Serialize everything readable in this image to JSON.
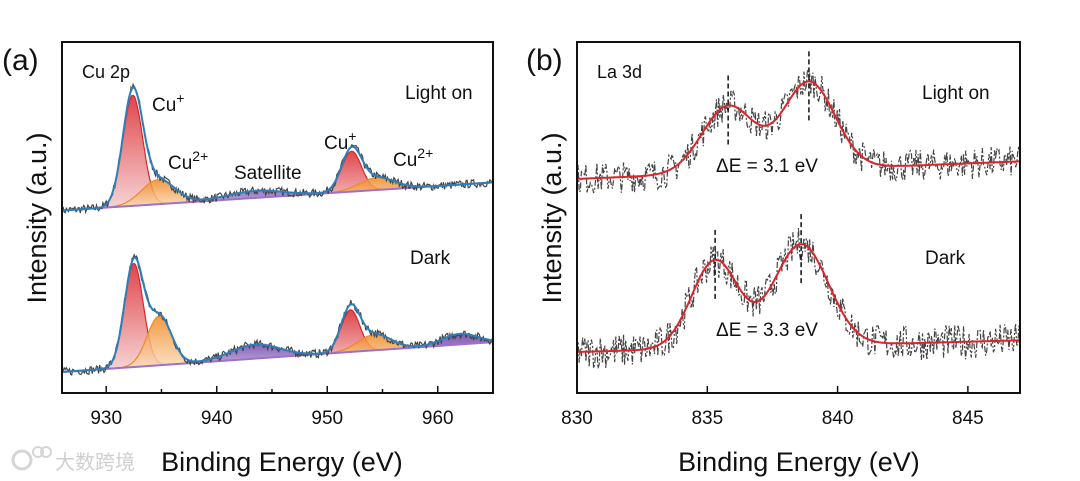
{
  "watermark": "大数跨境",
  "chart_data": [
    {
      "type": "line",
      "panel_label": "(a)",
      "title": "Cu 2p",
      "xlabel": "Binding Energy (eV)",
      "ylabel": "Intensity (a.u.)",
      "xlim": [
        926,
        965
      ],
      "ylim": [
        0,
        10
      ],
      "xticks": [
        930,
        940,
        950,
        960
      ],
      "minor_xticks": [
        935,
        945,
        955
      ],
      "series": [
        {
          "name": "Light on",
          "baseline": [
            5.2,
            6.0
          ],
          "noise": 0.12,
          "peaks": [
            {
              "label": "Cu+",
              "center": 932.4,
              "amp": 3.15,
              "sigma": 0.9,
              "color": "#d9252b"
            },
            {
              "label": "Cu2+",
              "center": 934.7,
              "amp": 0.7,
              "sigma": 1.5,
              "color": "#f08a24"
            },
            {
              "label": "Satellite",
              "center": 943.5,
              "amp": 0.2,
              "sigma": 2.5,
              "color": "#7a4aa8"
            },
            {
              "label": "Cu+",
              "center": 952.2,
              "amp": 1.15,
              "sigma": 0.9,
              "color": "#d9252b"
            },
            {
              "label": "Cu2+",
              "center": 954.5,
              "amp": 0.35,
              "sigma": 1.6,
              "color": "#f08a24"
            }
          ]
        },
        {
          "name": "Dark",
          "baseline": [
            0.6,
            1.45
          ],
          "noise": 0.12,
          "peaks": [
            {
              "label": "Cu+",
              "center": 932.5,
              "amp": 2.95,
              "sigma": 0.85,
              "color": "#d9252b"
            },
            {
              "label": "Cu2+",
              "center": 934.8,
              "amp": 1.4,
              "sigma": 1.1,
              "color": "#f08a24"
            },
            {
              "label": "Satellite",
              "center": 943.5,
              "amp": 0.4,
              "sigma": 2.2,
              "color": "#5b3aa0"
            },
            {
              "label": "Cu+",
              "center": 952.1,
              "amp": 1.2,
              "sigma": 0.85,
              "color": "#d9252b"
            },
            {
              "label": "Cu2+",
              "center": 954.3,
              "amp": 0.45,
              "sigma": 1.5,
              "color": "#f08a24"
            },
            {
              "label": "Satellite",
              "center": 962.0,
              "amp": 0.3,
              "sigma": 1.6,
              "color": "#5b3aa0"
            }
          ]
        }
      ],
      "annotations": {
        "light": "Light on",
        "dark": "Dark",
        "cu_plus": {
          "base": "Cu",
          "sup": "+"
        },
        "cu_2plus": {
          "base": "Cu",
          "sup": "2+"
        },
        "satellite": "Satellite"
      }
    },
    {
      "type": "line",
      "panel_label": "(b)",
      "title": "La 3d",
      "xlabel": "Binding Energy (eV)",
      "ylabel": "Intensity (a.u.)",
      "xlim": [
        830,
        847
      ],
      "ylim": [
        0,
        10
      ],
      "xticks": [
        830,
        835,
        840,
        845
      ],
      "series": [
        {
          "name": "Light on",
          "baseline": [
            6.1,
            6.6
          ],
          "noise": 0.45,
          "peaks": [
            {
              "center": 835.8,
              "amp": 1.9,
              "sigma": 1.0
            },
            {
              "center": 838.9,
              "amp": 2.5,
              "sigma": 1.0
            }
          ],
          "marker_lines": [
            835.8,
            838.9
          ],
          "delta_label": "ΔE = 3.1 eV"
        },
        {
          "name": "Dark",
          "baseline": [
            1.17,
            1.5
          ],
          "noise": 0.5,
          "peaks": [
            {
              "center": 835.3,
              "amp": 2.5,
              "sigma": 0.9
            },
            {
              "center": 838.6,
              "amp": 2.9,
              "sigma": 1.05
            }
          ],
          "marker_lines": [
            835.3,
            838.6
          ],
          "delta_label": "ΔE = 3.3 eV"
        }
      ],
      "annotations": {
        "light": "Light on",
        "dark": "Dark"
      }
    }
  ]
}
